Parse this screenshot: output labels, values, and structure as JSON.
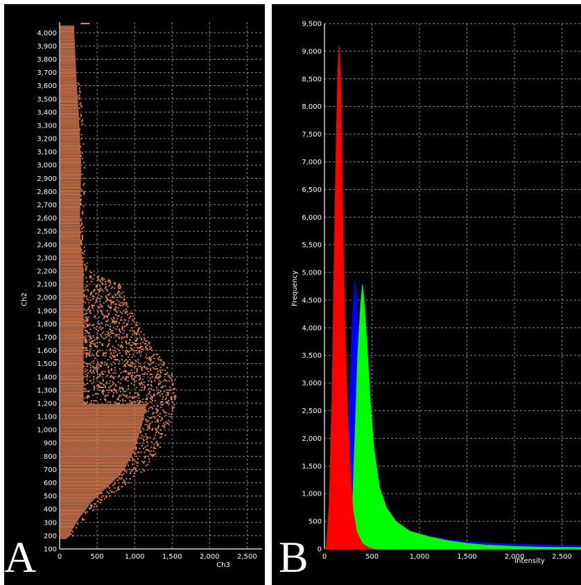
{
  "panel_labels": {
    "a": "A",
    "b": "B"
  },
  "chart_data": [
    {
      "type": "scatter",
      "panel": "A",
      "xlabel": "Ch3",
      "ylabel": "Ch2",
      "xlim": [
        0,
        2700
      ],
      "ylim": [
        100,
        4080
      ],
      "xticks": [
        0,
        500,
        1000,
        1500,
        2000,
        2500
      ],
      "xtick_labels": [
        "0",
        "500",
        "1,000",
        "1,500",
        "2,000",
        "2,500"
      ],
      "yticks": [
        100,
        200,
        300,
        400,
        500,
        600,
        700,
        800,
        900,
        1000,
        1100,
        1200,
        1300,
        1400,
        1500,
        1600,
        1700,
        1800,
        1900,
        2000,
        2100,
        2200,
        2300,
        2400,
        2500,
        2600,
        2700,
        2800,
        2900,
        3000,
        3100,
        3200,
        3300,
        3400,
        3500,
        3600,
        3700,
        3800,
        3900,
        4000
      ],
      "ytick_labels": [
        "100",
        "200",
        "300",
        "400",
        "500",
        "600",
        "700",
        "800",
        "900",
        "1,000",
        "1,100",
        "1,200",
        "1,300",
        "1,400",
        "1,500",
        "1,600",
        "1,700",
        "1,800",
        "1,900",
        "2,000",
        "2,100",
        "2,200",
        "2,300",
        "2,400",
        "2,500",
        "2,600",
        "2,700",
        "2,800",
        "2,900",
        "3,000",
        "3,100",
        "3,200",
        "3,300",
        "3,400",
        "3,500",
        "3,600",
        "3,700",
        "3,800",
        "3,900",
        "4,000"
      ],
      "grid": true,
      "point_color": "#e8855a",
      "band_rows": [
        {
          "y": 180,
          "x_max": 130
        },
        {
          "y": 200,
          "x_max": 180
        },
        {
          "y": 250,
          "x_max": 230
        },
        {
          "y": 300,
          "x_max": 300
        },
        {
          "y": 350,
          "x_max": 380
        },
        {
          "y": 400,
          "x_max": 470
        },
        {
          "y": 450,
          "x_max": 560
        },
        {
          "y": 500,
          "x_max": 680
        },
        {
          "y": 550,
          "x_max": 800
        },
        {
          "y": 600,
          "x_max": 930
        },
        {
          "y": 650,
          "x_max": 1050
        },
        {
          "y": 700,
          "x_max": 1150
        },
        {
          "y": 800,
          "x_max": 1280
        },
        {
          "y": 900,
          "x_max": 1370
        },
        {
          "y": 1000,
          "x_max": 1440
        },
        {
          "y": 1100,
          "x_max": 1500
        },
        {
          "y": 1200,
          "x_max": 1550
        },
        {
          "y": 1300,
          "x_max": 1570
        },
        {
          "y": 1400,
          "x_max": 1540
        },
        {
          "y": 1500,
          "x_max": 1400
        },
        {
          "y": 1600,
          "x_max": 1280
        },
        {
          "y": 1700,
          "x_max": 1150
        },
        {
          "y": 1800,
          "x_max": 1050
        },
        {
          "y": 1900,
          "x_max": 950
        },
        {
          "y": 2000,
          "x_max": 880
        },
        {
          "y": 2100,
          "x_max": 800
        },
        {
          "y": 2200,
          "x_max": 380
        },
        {
          "y": 2400,
          "x_max": 330
        },
        {
          "y": 2600,
          "x_max": 320
        },
        {
          "y": 2800,
          "x_max": 330
        },
        {
          "y": 3000,
          "x_max": 340
        },
        {
          "y": 3200,
          "x_max": 320
        },
        {
          "y": 3400,
          "x_max": 300
        },
        {
          "y": 3600,
          "x_max": 270
        },
        {
          "y": 3800,
          "x_max": 250
        },
        {
          "y": 4000,
          "x_max": 230
        }
      ]
    },
    {
      "type": "area",
      "panel": "B",
      "xlabel": "Intensity",
      "ylabel": "Frequency",
      "xlim": [
        0,
        2700
      ],
      "ylim": [
        0,
        9500
      ],
      "xticks": [
        0,
        500,
        1000,
        1500,
        2000,
        2500
      ],
      "xtick_labels": [
        "0",
        "500",
        "1,000",
        "1,500",
        "2,000",
        "2,500"
      ],
      "yticks": [
        0,
        500,
        1000,
        1500,
        2000,
        2500,
        3000,
        3500,
        4000,
        4500,
        5000,
        5500,
        6000,
        6500,
        7000,
        7500,
        8000,
        8500,
        9000,
        9500
      ],
      "ytick_labels": [
        "0",
        "500",
        "1,000",
        "1,500",
        "2,000",
        "2,500",
        "3,000",
        "3,500",
        "4,000",
        "4,500",
        "5,000",
        "5,500",
        "6,000",
        "6,500",
        "7,000",
        "7,500",
        "8,000",
        "8,500",
        "9,000",
        "9,500"
      ],
      "grid": true,
      "series": [
        {
          "color": "#0000ff",
          "points": [
            [
              0,
              0
            ],
            [
              150,
              0
            ],
            [
              200,
              400
            ],
            [
              240,
              1500
            ],
            [
              270,
              3000
            ],
            [
              290,
              4000
            ],
            [
              310,
              4600
            ],
            [
              320,
              4850
            ],
            [
              340,
              4500
            ],
            [
              360,
              3800
            ],
            [
              380,
              3000
            ],
            [
              420,
              2200
            ],
            [
              480,
              1400
            ],
            [
              560,
              900
            ],
            [
              700,
              520
            ],
            [
              900,
              320
            ],
            [
              1100,
              230
            ],
            [
              1300,
              170
            ],
            [
              1500,
              130
            ],
            [
              1800,
              100
            ],
            [
              2100,
              80
            ],
            [
              2400,
              70
            ],
            [
              2700,
              60
            ],
            [
              2700,
              0
            ]
          ]
        },
        {
          "color": "#00ff00",
          "points": [
            [
              0,
              0
            ],
            [
              260,
              0
            ],
            [
              290,
              500
            ],
            [
              320,
              2000
            ],
            [
              350,
              3500
            ],
            [
              380,
              4400
            ],
            [
              400,
              4780
            ],
            [
              420,
              4400
            ],
            [
              450,
              3600
            ],
            [
              480,
              2700
            ],
            [
              520,
              1800
            ],
            [
              580,
              1100
            ],
            [
              650,
              750
            ],
            [
              750,
              500
            ],
            [
              900,
              320
            ],
            [
              1100,
              220
            ],
            [
              1300,
              150
            ],
            [
              1500,
              100
            ],
            [
              1700,
              70
            ],
            [
              2000,
              45
            ],
            [
              2300,
              30
            ],
            [
              2700,
              25
            ],
            [
              2700,
              0
            ]
          ]
        },
        {
          "color": "#ff0000",
          "points": [
            [
              0,
              0
            ],
            [
              20,
              50
            ],
            [
              50,
              800
            ],
            [
              80,
              2800
            ],
            [
              100,
              5000
            ],
            [
              120,
              7000
            ],
            [
              140,
              8600
            ],
            [
              155,
              9100
            ],
            [
              170,
              8400
            ],
            [
              190,
              6200
            ],
            [
              210,
              4300
            ],
            [
              240,
              2500
            ],
            [
              270,
              1400
            ],
            [
              300,
              700
            ],
            [
              340,
              300
            ],
            [
              400,
              100
            ],
            [
              460,
              30
            ],
            [
              520,
              0
            ]
          ]
        }
      ]
    }
  ]
}
